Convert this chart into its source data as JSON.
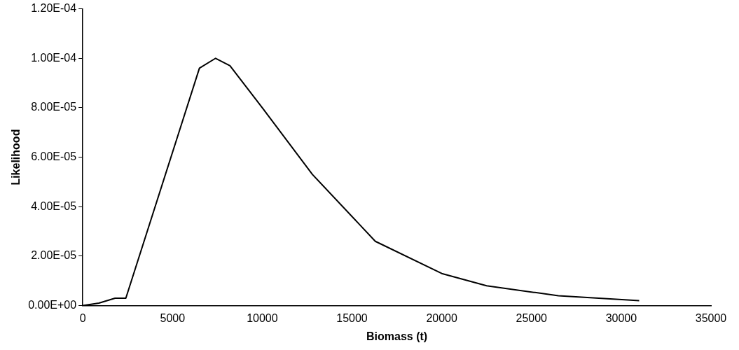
{
  "chart_data": {
    "type": "line",
    "xlabel": "Biomass (t)",
    "ylabel": "Likelihood",
    "x": [
      0,
      900,
      1800,
      2400,
      6500,
      7400,
      8200,
      10000,
      12800,
      16300,
      20000,
      22500,
      26500,
      31000
    ],
    "values": [
      0,
      1e-06,
      3e-06,
      3e-06,
      9.6e-05,
      0.0001,
      9.7e-05,
      8e-05,
      5.3e-05,
      2.6e-05,
      1.3e-05,
      8e-06,
      4e-06,
      2e-06
    ],
    "color": "#000000",
    "marker": "none",
    "line_style": "solid",
    "grid": false,
    "legend": false,
    "xlim": [
      0,
      35000
    ],
    "xticks": [
      0,
      5000,
      10000,
      15000,
      20000,
      25000,
      30000,
      35000
    ],
    "ylim": [
      0,
      0.00012
    ],
    "yticks": [
      {
        "value": 0,
        "label": "0.00E+00"
      },
      {
        "value": 2e-05,
        "label": "2.00E-05"
      },
      {
        "value": 4e-05,
        "label": "4.00E-05"
      },
      {
        "value": 6e-05,
        "label": "6.00E-05"
      },
      {
        "value": 8e-05,
        "label": "8.00E-05"
      },
      {
        "value": 0.0001,
        "label": "1.00E-04"
      },
      {
        "value": 0.00012,
        "label": "1.20E-04"
      }
    ]
  }
}
